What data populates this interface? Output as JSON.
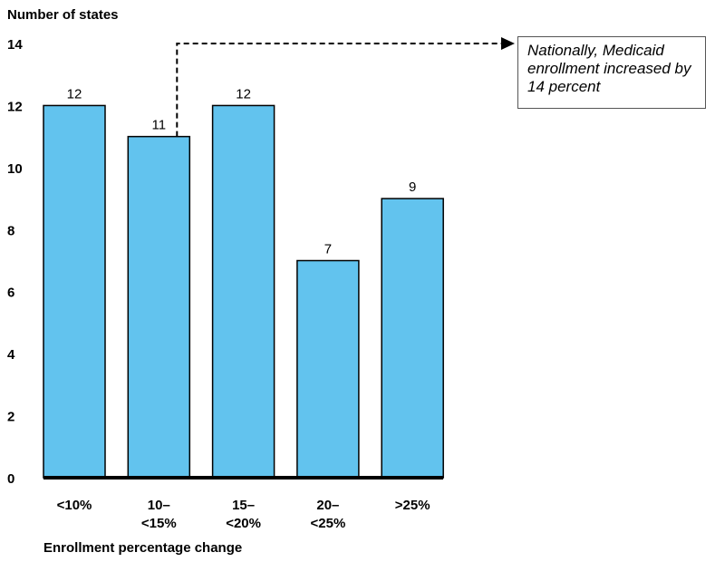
{
  "chart_data": {
    "type": "bar",
    "ylabel": "Number of states",
    "xlabel": "Enrollment percentage change",
    "categories": [
      "<10%",
      "10–<15%",
      "15–<20%",
      "20–<25%",
      ">25%"
    ],
    "category_lines": [
      [
        "<10%"
      ],
      [
        "10–",
        "<15%"
      ],
      [
        "15–",
        "<20%"
      ],
      [
        "20–",
        "<25%"
      ],
      [
        ">25%"
      ]
    ],
    "values": [
      12,
      11,
      12,
      7,
      9
    ],
    "data_labels": [
      "12",
      "11",
      "12",
      "7",
      "9"
    ],
    "ylim": [
      0,
      14
    ],
    "yticks": [
      0,
      2,
      4,
      6,
      8,
      10,
      12,
      14
    ],
    "grid": false,
    "bar_color": "#62c3ee",
    "bar_edge_color": "#000000",
    "annotation": {
      "text": "Nationally, Medicaid enrollment increased by 14 percent",
      "style": "dashed arrow from second bar to text box",
      "from_category": "10–<15%"
    }
  }
}
